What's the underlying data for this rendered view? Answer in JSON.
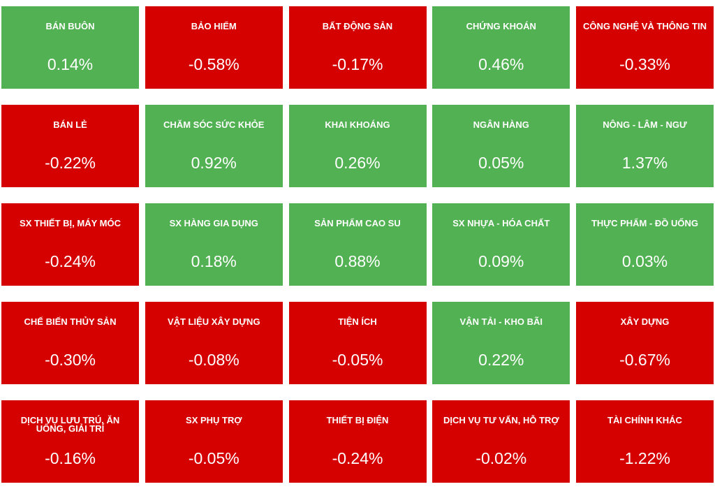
{
  "tiles": [
    {
      "name": "BÁN BUÔN",
      "value": "0.14%"
    },
    {
      "name": "BẢO HIỂM",
      "value": "-0.58%"
    },
    {
      "name": "BẤT ĐỘNG SẢN",
      "value": "-0.17%"
    },
    {
      "name": "CHỨNG KHOÁN",
      "value": "0.46%"
    },
    {
      "name": "CÔNG NGHỆ VÀ THÔNG TIN",
      "value": "-0.33%"
    },
    {
      "name": "BÁN LẺ",
      "value": "-0.22%"
    },
    {
      "name": "CHĂM SÓC SỨC KHỎE",
      "value": "0.92%"
    },
    {
      "name": "KHAI KHOÁNG",
      "value": "0.26%"
    },
    {
      "name": "NGÂN HÀNG",
      "value": "0.05%"
    },
    {
      "name": "NÔNG - LÂM - NGƯ",
      "value": "1.37%"
    },
    {
      "name": "SX THIẾT BỊ, MÁY MÓC",
      "value": "-0.24%"
    },
    {
      "name": "SX HÀNG GIA DỤNG",
      "value": "0.18%"
    },
    {
      "name": "SẢN PHẨM CAO SU",
      "value": "0.88%"
    },
    {
      "name": "SX NHỰA - HÓA CHẤT",
      "value": "0.09%"
    },
    {
      "name": "THỰC PHẨM - ĐỒ UỐNG",
      "value": "0.03%"
    },
    {
      "name": "CHẾ BIẾN THỦY SẢN",
      "value": "-0.30%"
    },
    {
      "name": "VẬT LIỆU XÂY DỰNG",
      "value": "-0.08%"
    },
    {
      "name": "TIỆN ÍCH",
      "value": "-0.05%"
    },
    {
      "name": "VẬN TẢI - KHO BÃI",
      "value": "0.22%"
    },
    {
      "name": "XÂY DỰNG",
      "value": "-0.67%"
    },
    {
      "name": "DỊCH VỤ LƯU TRÚ, ĂN UỐNG, GIẢI TRÍ",
      "value": "-0.16%"
    },
    {
      "name": "SX PHỤ TRỢ",
      "value": "-0.05%"
    },
    {
      "name": "THIẾT BỊ ĐIỆN",
      "value": "-0.24%"
    },
    {
      "name": "DỊCH VỤ TƯ VẤN, HỖ TRỢ",
      "value": "-0.02%"
    },
    {
      "name": "TÀI CHÍNH KHÁC",
      "value": "-1.22%"
    }
  ]
}
